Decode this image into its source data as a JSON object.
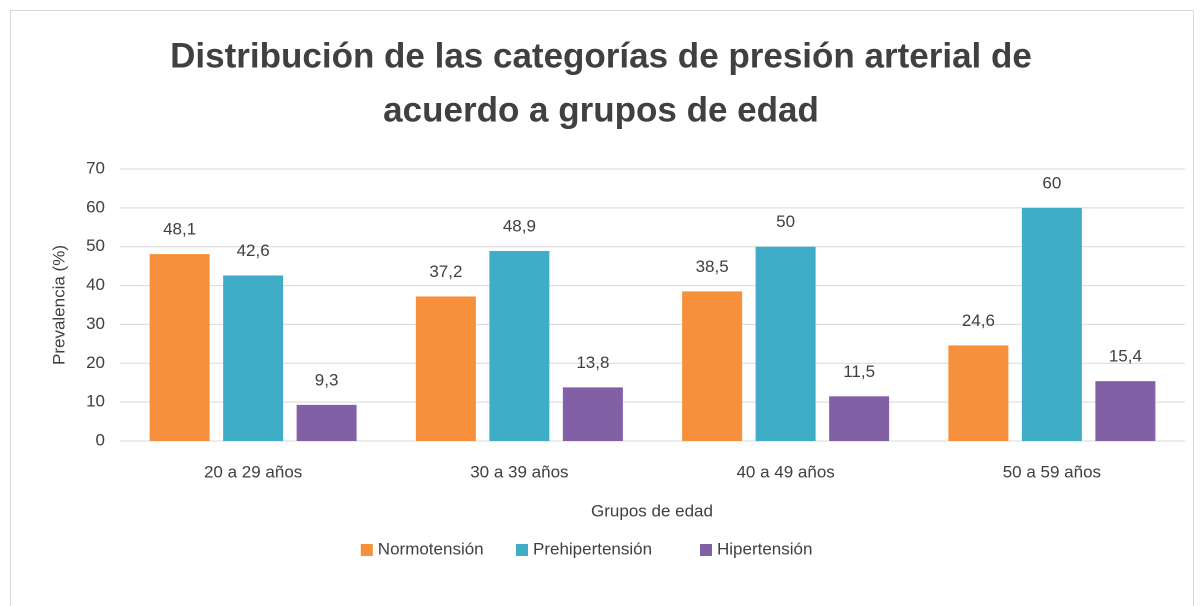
{
  "chart_data": {
    "type": "bar",
    "title": [
      "Distribución de las categorías de presión arterial de",
      "acuerdo a grupos de edad"
    ],
    "x_label": "Grupos de edad",
    "y_label": "Prevalencia (%)",
    "categories": [
      "20 a 29 años",
      "30 a 39 años",
      "40 a 49 años",
      "50 a 59 años"
    ],
    "series": [
      {
        "name": "Normotensión",
        "color": "#f7903a",
        "values": [
          48.1,
          37.2,
          38.5,
          24.6
        ],
        "value_labels": [
          "48,1",
          "37,2",
          "38,5",
          "24,6"
        ]
      },
      {
        "name": "Prehipertensión",
        "color": "#3fadc8",
        "values": [
          42.6,
          48.9,
          50,
          60
        ],
        "value_labels": [
          "42,6",
          "48,9",
          "50",
          "60"
        ]
      },
      {
        "name": "Hipertensión",
        "color": "#8160a6",
        "values": [
          9.3,
          13.8,
          11.5,
          15.4
        ],
        "value_labels": [
          "9,3",
          "13,8",
          "11,5",
          "15,4"
        ]
      }
    ],
    "ylim": [
      0,
      70
    ],
    "yticks": [
      0,
      10,
      20,
      30,
      40,
      50,
      60,
      70
    ],
    "grid": true,
    "legend": "bottom"
  }
}
